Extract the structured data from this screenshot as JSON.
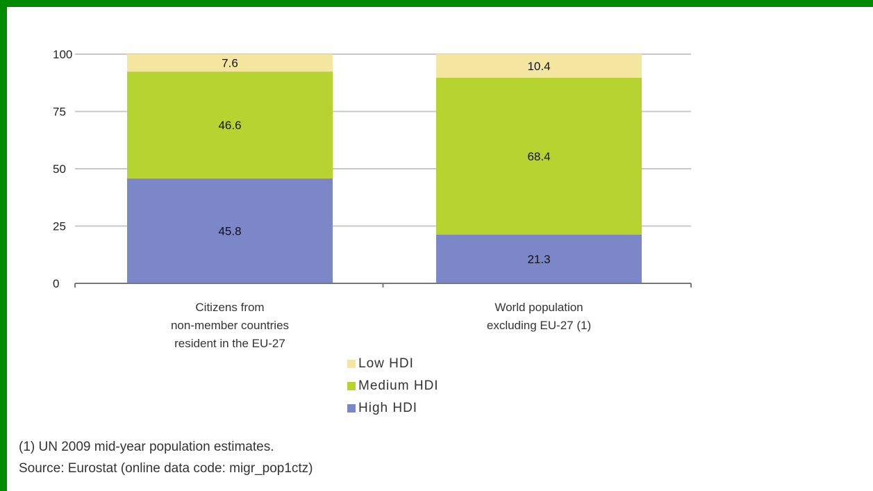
{
  "chart_data": {
    "type": "bar",
    "stacked": true,
    "categories": [
      [
        "Citizens from",
        "non-member countries",
        "resident in the EU-27"
      ],
      [
        "World population",
        "excluding EU-27 (1)"
      ]
    ],
    "series": [
      {
        "name": "High HDI",
        "color": "#7b87c6",
        "values": [
          45.8,
          21.3
        ]
      },
      {
        "name": "Medium HDI",
        "color": "#b7d330",
        "values": [
          46.6,
          68.4
        ]
      },
      {
        "name": "Low HDI",
        "color": "#f4e5a0",
        "values": [
          7.6,
          10.4
        ]
      }
    ],
    "data_labels": [
      [
        "45.8",
        "21.3"
      ],
      [
        "46.6",
        "68.4"
      ],
      [
        "7.6",
        "10.4"
      ]
    ],
    "yticks": [
      "0",
      "25",
      "50",
      "75",
      "100"
    ],
    "ylim": [
      0,
      100
    ],
    "grid": true,
    "legend_position": "bottom"
  },
  "legend": [
    {
      "label": "Low HDI",
      "color": "#f4e5a0"
    },
    {
      "label": "Medium HDI",
      "color": "#b7d330"
    },
    {
      "label": "High HDI",
      "color": "#7b87c6"
    }
  ],
  "notes": {
    "footnote": "(1) UN 2009 mid-year population estimates.",
    "source": "Source: Eurostat (online data code: migr_pop1ctz)"
  }
}
